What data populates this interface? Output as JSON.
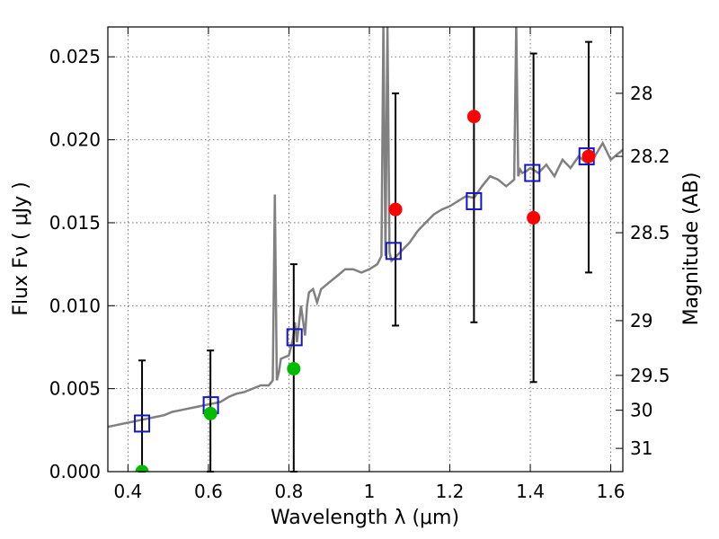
{
  "chart_data": {
    "type": "scatter",
    "xlabel": "Wavelength  λ (μm)",
    "ylabel": "Flux  Fν  ( μJy )",
    "y2label": "Magnitude (AB)",
    "xlim": [
      0.35,
      1.63
    ],
    "ylim": [
      0.0,
      0.0268
    ],
    "grid": true,
    "x_ticks": [
      0.4,
      0.6,
      0.8,
      1.0,
      1.2,
      1.4,
      1.6
    ],
    "x_tick_labels": [
      "0.4",
      "0.6",
      "0.8",
      "1",
      "1.2",
      "1.4",
      "1.6"
    ],
    "y_ticks": [
      0.0,
      0.005,
      0.01,
      0.015,
      0.02,
      0.025
    ],
    "y_tick_labels": [
      "0.000",
      "0.005",
      "0.010",
      "0.015",
      "0.020",
      "0.025"
    ],
    "y2_ticks": [
      {
        "label": "28",
        "flux": 0.0228
      },
      {
        "label": "28.2",
        "flux": 0.019
      },
      {
        "label": "28.5",
        "flux": 0.0144
      },
      {
        "label": "29",
        "flux": 0.0091
      },
      {
        "label": "29.5",
        "flux": 0.0058
      },
      {
        "label": "30",
        "flux": 0.0037
      },
      {
        "label": "31",
        "flux": 0.0014
      }
    ],
    "colors": {
      "model": "#808080",
      "model_bands": "#1414c8",
      "detections": "#ff0000",
      "upper_limits": "#00bb00",
      "errorbars": "#000000",
      "grid": "#555555"
    },
    "model_spectrum": {
      "x": [
        0.35,
        0.37,
        0.39,
        0.41,
        0.43,
        0.45,
        0.47,
        0.49,
        0.51,
        0.53,
        0.55,
        0.57,
        0.59,
        0.61,
        0.63,
        0.65,
        0.67,
        0.69,
        0.71,
        0.73,
        0.75,
        0.76,
        0.765,
        0.77,
        0.775,
        0.78,
        0.8,
        0.81,
        0.815,
        0.82,
        0.83,
        0.84,
        0.845,
        0.85,
        0.86,
        0.87,
        0.88,
        0.9,
        0.92,
        0.94,
        0.96,
        0.98,
        1.0,
        1.02,
        1.03,
        1.035,
        1.04,
        1.045,
        1.05,
        1.055,
        1.06,
        1.08,
        1.1,
        1.12,
        1.14,
        1.16,
        1.18,
        1.2,
        1.22,
        1.24,
        1.26,
        1.28,
        1.3,
        1.32,
        1.34,
        1.36,
        1.365,
        1.37,
        1.375,
        1.38,
        1.39,
        1.4,
        1.42,
        1.44,
        1.46,
        1.48,
        1.5,
        1.52,
        1.54,
        1.56,
        1.58,
        1.6,
        1.62,
        1.63
      ],
      "y": [
        0.0027,
        0.0028,
        0.0029,
        0.003,
        0.0031,
        0.0032,
        0.0033,
        0.0034,
        0.0036,
        0.0037,
        0.0038,
        0.0039,
        0.004,
        0.0041,
        0.0042,
        0.0045,
        0.0047,
        0.0048,
        0.005,
        0.0052,
        0.0052,
        0.0055,
        0.0167,
        0.0055,
        0.006,
        0.0068,
        0.007,
        0.008,
        0.009,
        0.0078,
        0.01,
        0.0082,
        0.01,
        0.0108,
        0.011,
        0.0102,
        0.011,
        0.0114,
        0.0118,
        0.0122,
        0.0122,
        0.012,
        0.0122,
        0.0125,
        0.013,
        0.027,
        0.013,
        0.027,
        0.0132,
        0.0127,
        0.0128,
        0.0133,
        0.0138,
        0.0145,
        0.015,
        0.0155,
        0.0158,
        0.016,
        0.0163,
        0.0166,
        0.0165,
        0.0172,
        0.0178,
        0.0176,
        0.0172,
        0.0176,
        0.027,
        0.0178,
        0.0182,
        0.018,
        0.0181,
        0.0183,
        0.018,
        0.0185,
        0.0178,
        0.0188,
        0.0183,
        0.019,
        0.0186,
        0.019,
        0.0198,
        0.0188,
        0.0192,
        0.0194
      ]
    },
    "model_band_fluxes": {
      "x": [
        0.435,
        0.606,
        0.814,
        1.06,
        1.26,
        1.405,
        1.54
      ],
      "y": [
        0.0029,
        0.004,
        0.0081,
        0.0133,
        0.0163,
        0.018,
        0.019
      ]
    },
    "detections": {
      "x": [
        1.065,
        1.26,
        1.408,
        1.545
      ],
      "y": [
        0.0158,
        0.0214,
        0.0153,
        0.019
      ],
      "yerr_low": [
        0.0088,
        0.009,
        0.0054,
        0.012
      ],
      "yerr_high": [
        0.0228,
        0.027,
        0.0252,
        0.0259
      ]
    },
    "upper_limits": {
      "x": [
        0.435,
        0.605,
        0.812
      ],
      "y": [
        0.0,
        0.0035,
        0.0062
      ],
      "yerr_low": [
        0.0,
        0.0,
        0.0
      ],
      "yerr_high": [
        0.0067,
        0.0073,
        0.0125
      ]
    }
  }
}
